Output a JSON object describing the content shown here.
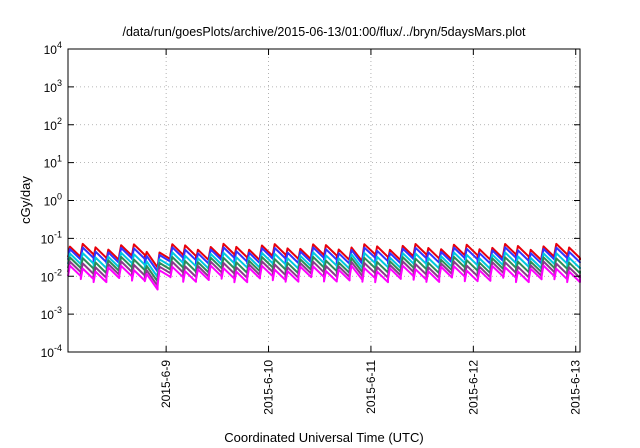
{
  "chart_data": {
    "type": "line",
    "title": "/data/run/goesPlots/archive/2015-06-13/01:00/flux/../bryn/5daysMars.plot",
    "xlabel": "Coordinated Universal Time (UTC)",
    "ylabel": "cGy/day",
    "yscale": "log",
    "ylim": [
      0.0001,
      10000
    ],
    "xlim": [
      "2015-06-08T01:00",
      "2015-06-13T01:00"
    ],
    "grid": true,
    "legend": "none",
    "y_ticks": [
      {
        "value": 10000,
        "base": "10",
        "exp": "4"
      },
      {
        "value": 1000,
        "base": "10",
        "exp": "3"
      },
      {
        "value": 100,
        "base": "10",
        "exp": "2"
      },
      {
        "value": 10,
        "base": "10",
        "exp": "1"
      },
      {
        "value": 1,
        "base": "10",
        "exp": "0"
      },
      {
        "value": 0.1,
        "base": "10",
        "exp": "-1"
      },
      {
        "value": 0.01,
        "base": "10",
        "exp": "-2"
      },
      {
        "value": 0.001,
        "base": "10",
        "exp": "-3"
      },
      {
        "value": 0.0001,
        "base": "10",
        "exp": "-4"
      }
    ],
    "x_ticks": [
      {
        "value": "2015-06-09T00:00",
        "label": "2015-6-9"
      },
      {
        "value": "2015-06-10T00:00",
        "label": "2015-6-10"
      },
      {
        "value": "2015-06-11T00:00",
        "label": "2015-6-11"
      },
      {
        "value": "2015-06-12T00:00",
        "label": "2015-6-12"
      },
      {
        "value": "2015-06-13T00:00",
        "label": "2015-6-13"
      }
    ],
    "series": [
      {
        "color": "#e8000b",
        "base": 0.032
      },
      {
        "color": "#3232ff",
        "base": 0.026
      },
      {
        "color": "#00c8e0",
        "base": 0.019
      },
      {
        "color": "#2e8b57",
        "base": 0.0145
      },
      {
        "color": "#8b3a8b",
        "base": 0.011
      },
      {
        "color": "#ff00ff",
        "base": 0.0085
      }
    ],
    "pattern": {
      "period_hours": 3,
      "rise_ratio": 1.9,
      "decay_ratio": 0.52,
      "dips": [
        {
          "center": "2015-06-08T21:00",
          "halfwidth_hours": 2,
          "ratio": 0.22
        },
        {
          "center": "2015-06-10T21:00",
          "halfwidth_hours": 1.5,
          "ratio": 0.42
        }
      ]
    }
  }
}
